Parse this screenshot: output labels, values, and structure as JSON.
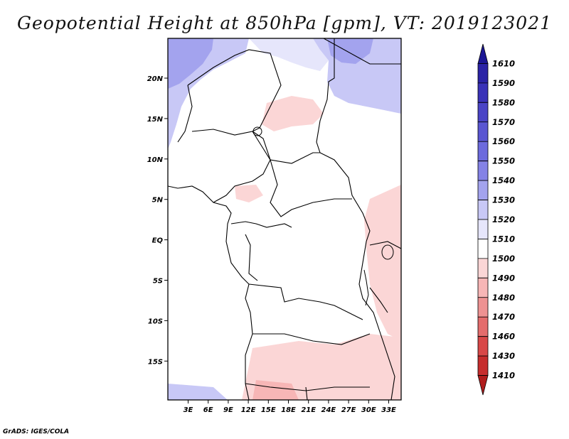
{
  "title": "Geopotential Height at 850hPa [gpm], VT: 2019123021",
  "footer": "GrADS: IGES/COLA",
  "map": {
    "lat_labels": [
      "20N",
      "15N",
      "10N",
      "5N",
      "EQ",
      "5S",
      "10S",
      "15S"
    ],
    "lon_labels": [
      "3E",
      "6E",
      "9E",
      "12E",
      "15E",
      "18E",
      "21E",
      "24E",
      "27E",
      "30E",
      "33E"
    ]
  },
  "colorbar": {
    "levels": [
      "1610",
      "1590",
      "1580",
      "1570",
      "1560",
      "1550",
      "1540",
      "1530",
      "1520",
      "1510",
      "1500",
      "1490",
      "1480",
      "1470",
      "1460",
      "1430",
      "1410"
    ],
    "colors": [
      "#1c1694",
      "#2b23a6",
      "#3a32b8",
      "#4a44c6",
      "#5a56d2",
      "#6c6add",
      "#8482e6",
      "#a3a3ee",
      "#c8c8f6",
      "#e6e6fb",
      "#ffffff",
      "#fbd6d6",
      "#f7b6b6",
      "#ee9292",
      "#e46c6c",
      "#d84848",
      "#c62d2d",
      "#b01c1c"
    ]
  }
}
